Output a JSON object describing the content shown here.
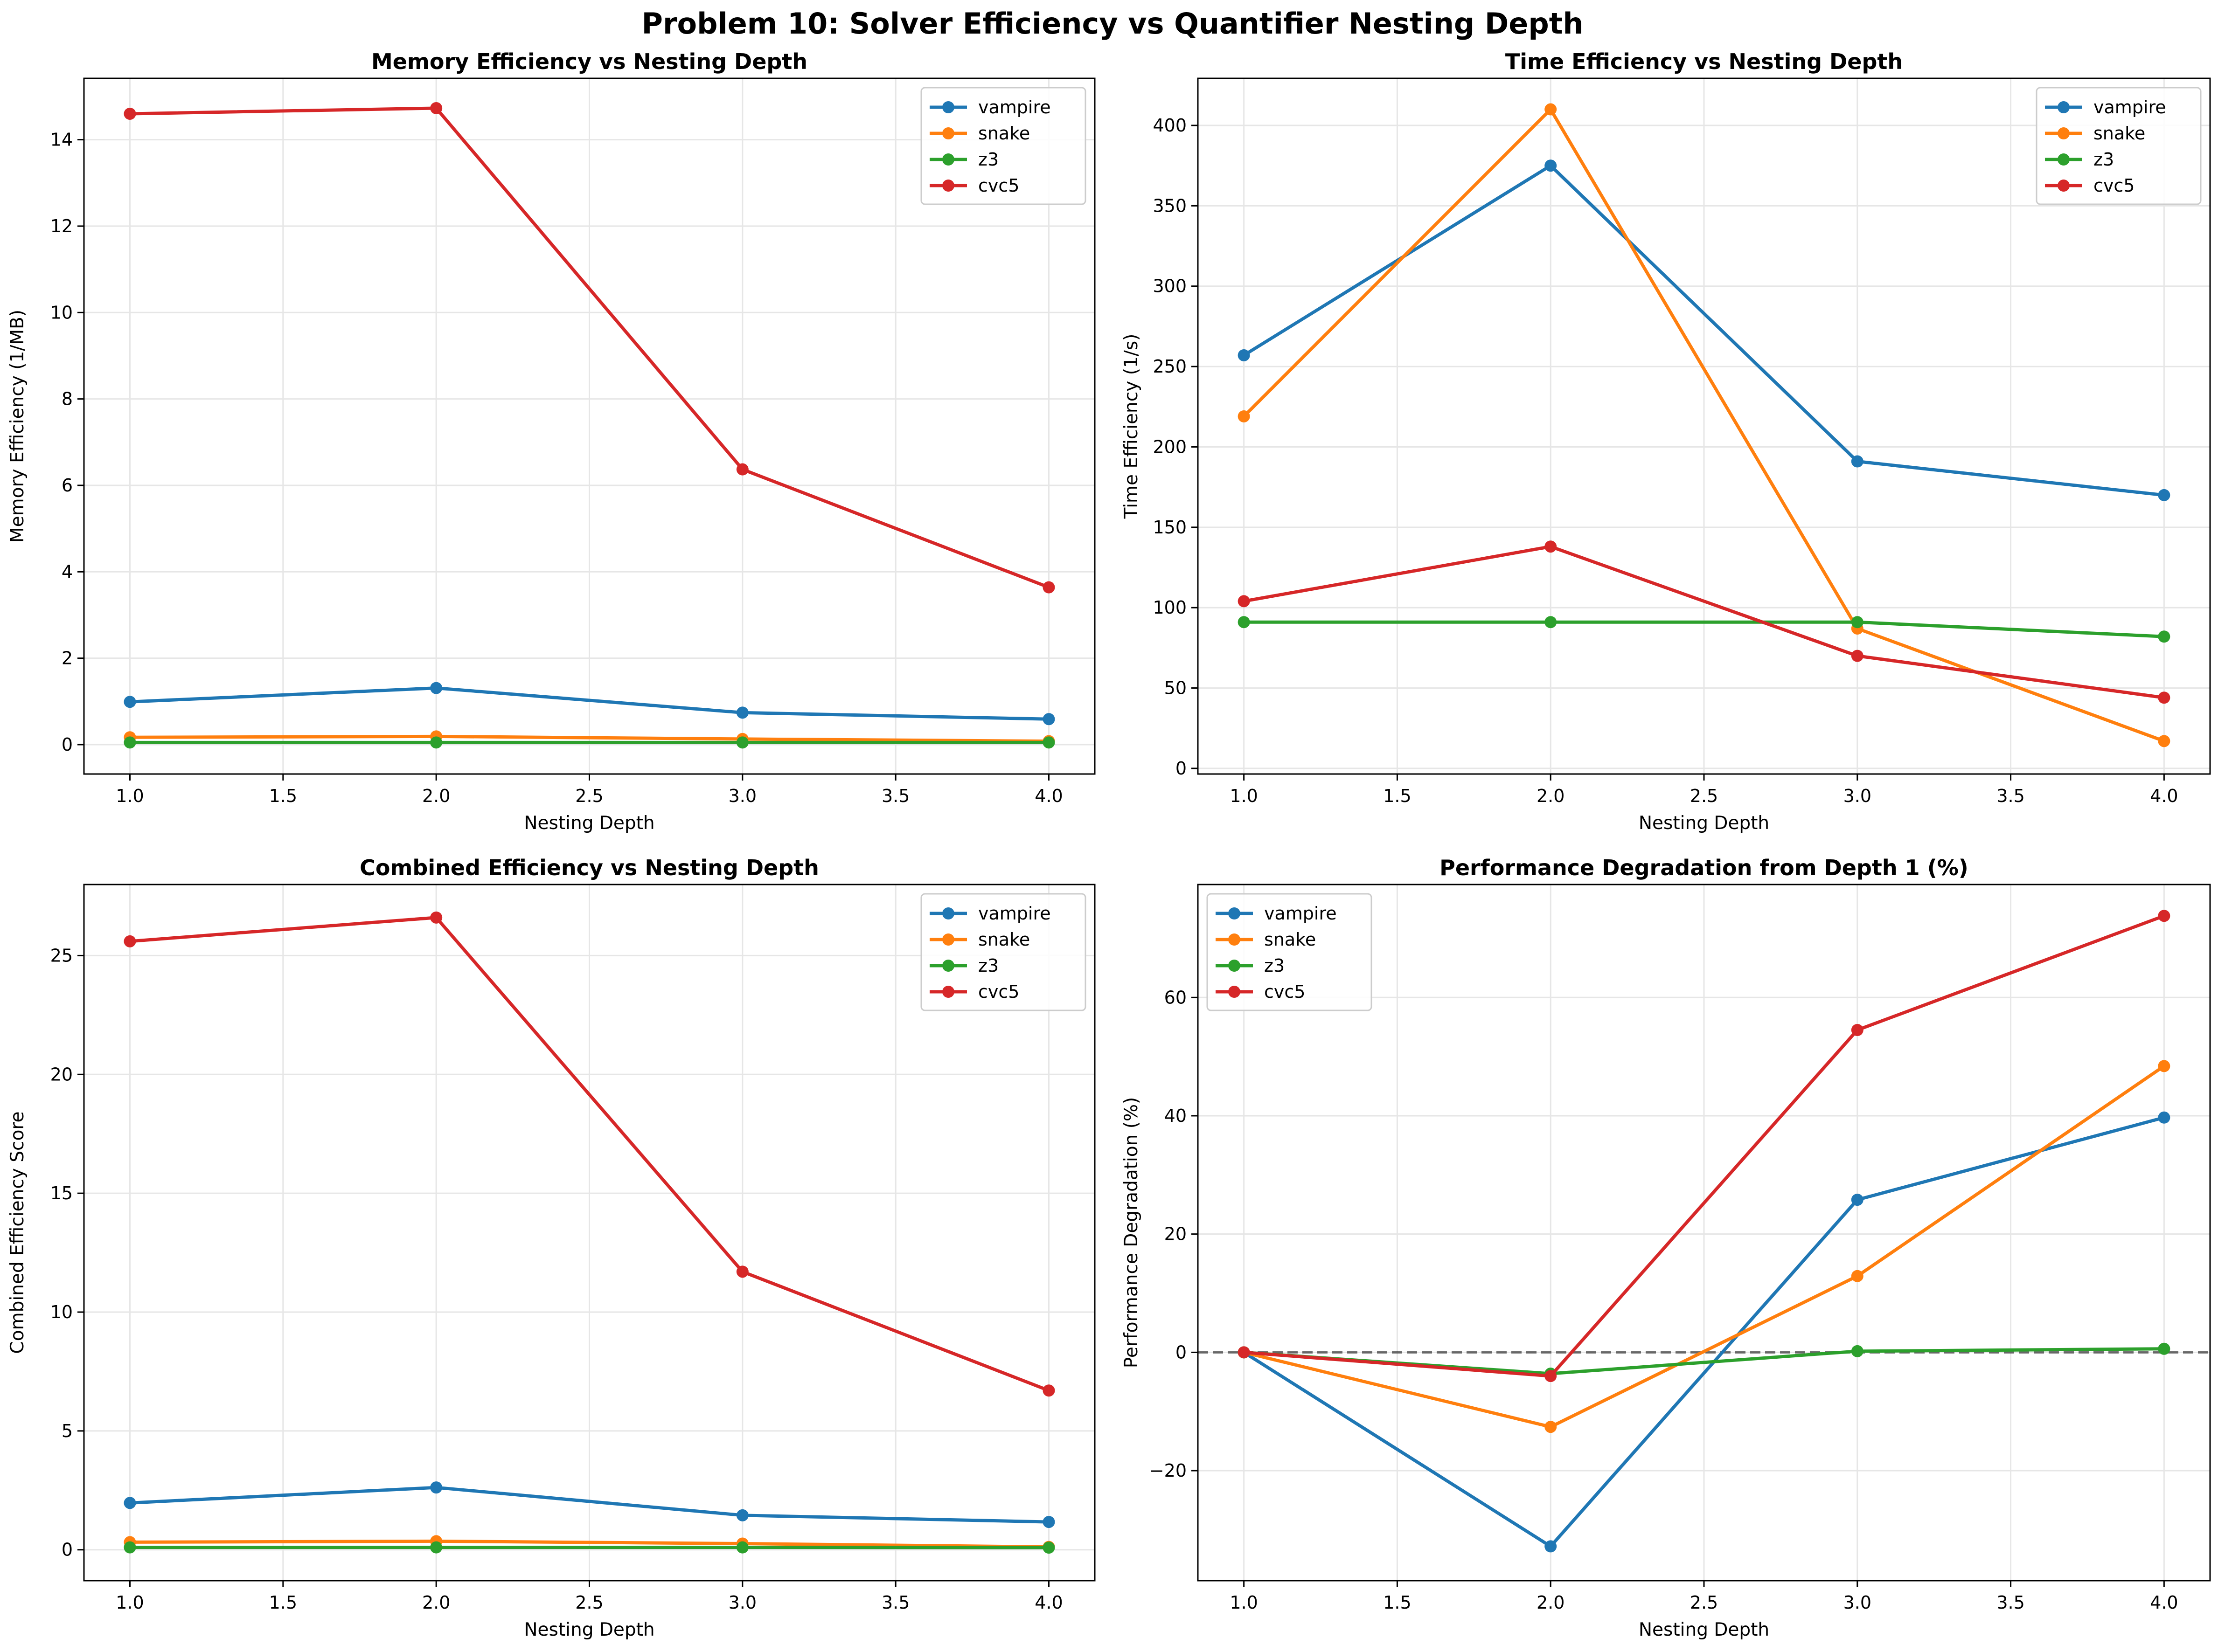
{
  "suptitle": "Problem 10: Solver Efficiency vs Quantifier Nesting Depth",
  "colors": {
    "vampire": "#1f77b4",
    "snake": "#ff7f0e",
    "z3": "#2ca02c",
    "cvc5": "#d62728"
  },
  "chart_data": [
    {
      "type": "line",
      "title": "Memory Efficiency vs Nesting Depth",
      "xlabel": "Nesting Depth",
      "ylabel": "Memory Efficiency (1/MB)",
      "x": [
        1.0,
        2.0,
        3.0,
        4.0
      ],
      "xlim": [
        0.85,
        4.15
      ],
      "ylim": [
        -0.68,
        15.42
      ],
      "xticks": [
        1.0,
        1.5,
        2.0,
        2.5,
        3.0,
        3.5,
        4.0
      ],
      "xtick_labels": [
        "1.0",
        "1.5",
        "2.0",
        "2.5",
        "3.0",
        "3.5",
        "4.0"
      ],
      "yticks": [
        0,
        2,
        4,
        6,
        8,
        10,
        12,
        14
      ],
      "ytick_labels": [
        "0",
        "2",
        "4",
        "6",
        "8",
        "10",
        "12",
        "14"
      ],
      "grid": true,
      "legend": "upper right",
      "series": [
        {
          "name": "vampire",
          "values": [
            0.99,
            1.31,
            0.74,
            0.59
          ]
        },
        {
          "name": "snake",
          "values": [
            0.17,
            0.19,
            0.13,
            0.08
          ]
        },
        {
          "name": "z3",
          "values": [
            0.05,
            0.05,
            0.05,
            0.05
          ]
        },
        {
          "name": "cvc5",
          "values": [
            14.6,
            14.73,
            6.37,
            3.64
          ]
        }
      ]
    },
    {
      "type": "line",
      "title": "Time Efficiency vs Nesting Depth",
      "xlabel": "Nesting Depth",
      "ylabel": "Time Efficiency (1/s)",
      "x": [
        1.0,
        2.0,
        3.0,
        4.0
      ],
      "xlim": [
        0.85,
        4.15
      ],
      "ylim": [
        -3.5,
        429.3
      ],
      "xticks": [
        1.0,
        1.5,
        2.0,
        2.5,
        3.0,
        3.5,
        4.0
      ],
      "xtick_labels": [
        "1.0",
        "1.5",
        "2.0",
        "2.5",
        "3.0",
        "3.5",
        "4.0"
      ],
      "yticks": [
        0,
        50,
        100,
        150,
        200,
        250,
        300,
        350,
        400
      ],
      "ytick_labels": [
        "0",
        "50",
        "100",
        "150",
        "200",
        "250",
        "300",
        "350",
        "400"
      ],
      "grid": true,
      "legend": "upper right",
      "series": [
        {
          "name": "vampire",
          "values": [
            257,
            375,
            191,
            170
          ]
        },
        {
          "name": "snake",
          "values": [
            219,
            410,
            87,
            17
          ]
        },
        {
          "name": "z3",
          "values": [
            91,
            91,
            91,
            82
          ]
        },
        {
          "name": "cvc5",
          "values": [
            104,
            138,
            70,
            44
          ]
        }
      ]
    },
    {
      "type": "line",
      "title": "Combined Efficiency vs Nesting Depth",
      "xlabel": "Nesting Depth",
      "ylabel": "Combined Efficiency Score",
      "x": [
        1.0,
        2.0,
        3.0,
        4.0
      ],
      "xlim": [
        0.85,
        4.15
      ],
      "ylim": [
        -1.3,
        27.99
      ],
      "xticks": [
        1.0,
        1.5,
        2.0,
        2.5,
        3.0,
        3.5,
        4.0
      ],
      "xtick_labels": [
        "1.0",
        "1.5",
        "2.0",
        "2.5",
        "3.0",
        "3.5",
        "4.0"
      ],
      "yticks": [
        0,
        5,
        10,
        15,
        20,
        25
      ],
      "ytick_labels": [
        "0",
        "5",
        "10",
        "15",
        "20",
        "25"
      ],
      "grid": true,
      "legend": "upper right",
      "series": [
        {
          "name": "vampire",
          "values": [
            1.97,
            2.62,
            1.45,
            1.17
          ]
        },
        {
          "name": "snake",
          "values": [
            0.32,
            0.36,
            0.26,
            0.12
          ]
        },
        {
          "name": "z3",
          "values": [
            0.1,
            0.1,
            0.1,
            0.09
          ]
        },
        {
          "name": "cvc5",
          "values": [
            25.6,
            26.6,
            11.7,
            6.7
          ]
        }
      ]
    },
    {
      "type": "line",
      "title": "Performance Degradation from Depth 1 (%)",
      "xlabel": "Nesting Depth",
      "ylabel": "Performance Degradation (%)",
      "x": [
        1.0,
        2.0,
        3.0,
        4.0
      ],
      "xlim": [
        0.85,
        4.15
      ],
      "ylim": [
        -38.6,
        79.1
      ],
      "xticks": [
        1.0,
        1.5,
        2.0,
        2.5,
        3.0,
        3.5,
        4.0
      ],
      "xtick_labels": [
        "1.0",
        "1.5",
        "2.0",
        "2.5",
        "3.0",
        "3.5",
        "4.0"
      ],
      "yticks": [
        -20,
        0,
        20,
        40,
        60
      ],
      "ytick_labels": [
        "−20",
        "0",
        "20",
        "40",
        "60"
      ],
      "grid": true,
      "legend": "upper left",
      "reference_line_y": 0,
      "series": [
        {
          "name": "vampire",
          "values": [
            0,
            -32.8,
            25.8,
            39.7
          ]
        },
        {
          "name": "snake",
          "values": [
            0,
            -12.6,
            12.9,
            48.4
          ]
        },
        {
          "name": "z3",
          "values": [
            0,
            -3.6,
            0.2,
            0.6
          ]
        },
        {
          "name": "cvc5",
          "values": [
            0,
            -4.0,
            54.5,
            73.8
          ]
        }
      ]
    }
  ]
}
